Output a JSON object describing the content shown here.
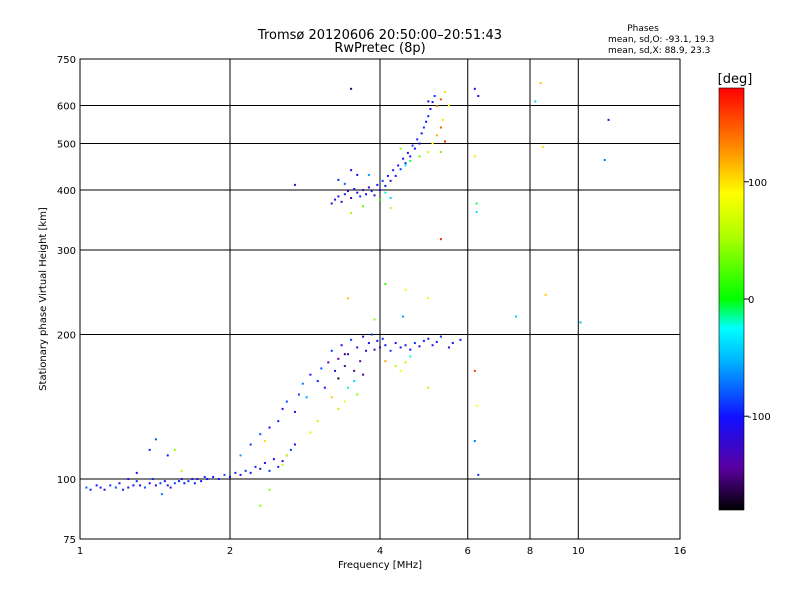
{
  "chart_data": {
    "type": "scatter",
    "title": "Tromsø 20120606 20:50:00–20:51:43",
    "subtitle": "RwPretec (8p)",
    "xlabel": "Frequency [MHz]",
    "ylabel": "Stationary phase Virtual Height [km]",
    "x_scale": "log",
    "y_scale": "log",
    "xlim": [
      1,
      16
    ],
    "ylim": [
      75,
      750
    ],
    "x_ticks": [
      "1",
      "2",
      "4",
      "6",
      "8",
      "10",
      "16"
    ],
    "y_ticks": [
      "75",
      "100",
      "200",
      "300",
      "400",
      "500",
      "600",
      "750"
    ],
    "x_tick_values": [
      1,
      2,
      4,
      6,
      8,
      10,
      16
    ],
    "y_tick_values": [
      75,
      100,
      200,
      300,
      400,
      500,
      600,
      750
    ],
    "x_grid": [
      2,
      4,
      6,
      8,
      10
    ],
    "y_grid": [
      100,
      200,
      300,
      400,
      500,
      600
    ],
    "grid": true,
    "stats": {
      "heading": "Phases",
      "line_o": "mean, sd,O: -93.1, 19.3",
      "line_x": "mean, sd,X:  88.9, 23.3"
    },
    "colorbar": {
      "label": "[deg]",
      "range": [
        -180,
        180
      ],
      "ticks": [
        "100",
        "0",
        "-100"
      ],
      "tick_values": [
        100,
        0,
        -100
      ]
    },
    "series": [
      {
        "points": [
          [
            1.03,
            96,
            -80
          ],
          [
            1.05,
            95,
            -95
          ],
          [
            1.08,
            97,
            -110
          ],
          [
            1.1,
            96,
            -100
          ],
          [
            1.12,
            95,
            -120
          ],
          [
            1.15,
            97,
            -90
          ],
          [
            1.18,
            96,
            -85
          ],
          [
            1.2,
            98,
            -105
          ],
          [
            1.22,
            95,
            -95
          ],
          [
            1.25,
            96,
            -115
          ],
          [
            1.28,
            97,
            -100
          ],
          [
            1.3,
            99,
            -90
          ],
          [
            1.32,
            97,
            -110
          ],
          [
            1.35,
            96,
            -80
          ],
          [
            1.38,
            98,
            -100
          ],
          [
            1.4,
            100,
            -95
          ],
          [
            1.42,
            97,
            -120
          ],
          [
            1.45,
            98,
            -90
          ],
          [
            1.48,
            99,
            -105
          ],
          [
            1.5,
            97,
            -100
          ],
          [
            1.52,
            96,
            -115
          ],
          [
            1.55,
            98,
            -85
          ],
          [
            1.58,
            99,
            -95
          ],
          [
            1.6,
            100,
            -110
          ],
          [
            1.62,
            98,
            -100
          ],
          [
            1.65,
            99,
            -90
          ],
          [
            1.68,
            100,
            -105
          ],
          [
            1.7,
            98,
            -95
          ],
          [
            1.72,
            100,
            -120
          ],
          [
            1.75,
            99,
            -100
          ],
          [
            1.78,
            101,
            -90
          ],
          [
            1.8,
            100,
            -110
          ],
          [
            1.85,
            101,
            -95
          ],
          [
            1.9,
            100,
            -100
          ],
          [
            1.95,
            102,
            -85
          ],
          [
            2.0,
            101,
            -105
          ],
          [
            2.05,
            103,
            -95
          ],
          [
            2.1,
            102,
            -110
          ],
          [
            2.15,
            104,
            -90
          ],
          [
            2.2,
            103,
            -100
          ],
          [
            2.25,
            106,
            -95
          ],
          [
            2.3,
            105,
            -115
          ],
          [
            2.35,
            108,
            -100
          ],
          [
            2.4,
            104,
            -90
          ],
          [
            2.45,
            110,
            -105
          ],
          [
            2.5,
            106,
            -95
          ],
          [
            2.55,
            109,
            -110
          ],
          [
            2.6,
            112,
            -100
          ],
          [
            2.65,
            115,
            -90
          ],
          [
            2.7,
            118,
            -105
          ],
          [
            1.38,
            115,
            -95
          ],
          [
            1.42,
            121,
            -80
          ],
          [
            1.5,
            112,
            -100
          ],
          [
            1.55,
            115,
            45
          ],
          [
            1.3,
            103,
            -110
          ],
          [
            1.46,
            93,
            -70
          ],
          [
            1.25,
            100,
            -100
          ],
          [
            1.6,
            104,
            55
          ],
          [
            2.1,
            112,
            -60
          ],
          [
            2.2,
            118,
            -90
          ],
          [
            2.3,
            124,
            -80
          ],
          [
            2.4,
            128,
            -100
          ],
          [
            2.5,
            132,
            -95
          ],
          [
            2.55,
            140,
            -110
          ],
          [
            2.6,
            145,
            -85
          ],
          [
            2.7,
            138,
            -120
          ],
          [
            2.75,
            150,
            -90
          ],
          [
            2.8,
            158,
            -70
          ],
          [
            2.85,
            148,
            -60
          ],
          [
            2.9,
            165,
            -100
          ],
          [
            3.0,
            160,
            -95
          ],
          [
            3.05,
            170,
            -80
          ],
          [
            3.1,
            155,
            -110
          ],
          [
            3.15,
            175,
            -130
          ],
          [
            3.2,
            185,
            -90
          ],
          [
            3.25,
            168,
            -120
          ],
          [
            3.3,
            178,
            -140
          ],
          [
            3.35,
            190,
            -100
          ],
          [
            3.4,
            172,
            -130
          ],
          [
            3.45,
            182,
            -110
          ],
          [
            3.5,
            195,
            -90
          ],
          [
            3.55,
            168,
            -150
          ],
          [
            3.6,
            188,
            -120
          ],
          [
            3.65,
            176,
            -140
          ],
          [
            3.7,
            198,
            -100
          ],
          [
            3.75,
            185,
            -130
          ],
          [
            3.8,
            192,
            -110
          ],
          [
            3.85,
            200,
            -90
          ],
          [
            3.9,
            186,
            -120
          ],
          [
            3.95,
            194,
            -100
          ],
          [
            4.0,
            188,
            -110
          ],
          [
            4.05,
            196,
            -95
          ],
          [
            4.1,
            190,
            -105
          ],
          [
            4.2,
            185,
            -90
          ],
          [
            4.3,
            192,
            -100
          ],
          [
            4.4,
            188,
            -110
          ],
          [
            4.5,
            190,
            -95
          ],
          [
            4.6,
            186,
            -100
          ],
          [
            4.7,
            192,
            -90
          ],
          [
            4.8,
            189,
            -105
          ],
          [
            4.9,
            194,
            -95
          ],
          [
            5.0,
            196,
            -100
          ],
          [
            5.1,
            190,
            -110
          ],
          [
            5.2,
            193,
            -100
          ],
          [
            5.3,
            198,
            -90
          ],
          [
            5.5,
            188,
            -120
          ],
          [
            5.6,
            192,
            -110
          ],
          [
            5.8,
            195,
            -100
          ],
          [
            3.3,
            140,
            55
          ],
          [
            3.4,
            145,
            80
          ],
          [
            3.6,
            150,
            40
          ],
          [
            4.3,
            172,
            60
          ],
          [
            4.4,
            168,
            85
          ],
          [
            4.5,
            175,
            50
          ],
          [
            3.0,
            132,
            60
          ],
          [
            2.9,
            125,
            70
          ],
          [
            3.45,
            155,
            -20
          ],
          [
            3.55,
            160,
            -40
          ],
          [
            3.2,
            148,
            110
          ],
          [
            3.3,
            162,
            -170
          ],
          [
            3.7,
            165,
            -150
          ],
          [
            3.4,
            182,
            -160
          ],
          [
            4.6,
            180,
            -20
          ],
          [
            4.1,
            176,
            120
          ],
          [
            2.35,
            120,
            100
          ],
          [
            2.6,
            112,
            80
          ],
          [
            2.4,
            95,
            40
          ],
          [
            2.55,
            107,
            65
          ],
          [
            2.3,
            88,
            40
          ],
          [
            3.45,
            238,
            110
          ],
          [
            3.9,
            215,
            40
          ],
          [
            4.1,
            255,
            15
          ],
          [
            4.5,
            248,
            95
          ],
          [
            5.0,
            238,
            80
          ],
          [
            4.45,
            218,
            -60
          ],
          [
            7.5,
            218,
            -40
          ],
          [
            8.6,
            242,
            110
          ],
          [
            10.1,
            212,
            -50
          ],
          [
            6.2,
            168,
            160
          ],
          [
            6.25,
            142,
            90
          ],
          [
            6.2,
            120,
            -70
          ],
          [
            6.3,
            102,
            -90
          ],
          [
            5.0,
            155,
            60
          ],
          [
            3.2,
            375,
            -120
          ],
          [
            3.25,
            382,
            -110
          ],
          [
            3.3,
            388,
            -100
          ],
          [
            3.35,
            378,
            -130
          ],
          [
            3.4,
            392,
            -95
          ],
          [
            3.45,
            398,
            -120
          ],
          [
            3.5,
            385,
            -140
          ],
          [
            3.55,
            402,
            -100
          ],
          [
            3.6,
            395,
            -110
          ],
          [
            3.65,
            388,
            -90
          ],
          [
            3.7,
            400,
            -130
          ],
          [
            3.75,
            392,
            -100
          ],
          [
            3.8,
            405,
            -115
          ],
          [
            3.85,
            398,
            -95
          ],
          [
            3.9,
            390,
            -120
          ],
          [
            3.95,
            410,
            -100
          ],
          [
            4.0,
            400,
            -110
          ],
          [
            4.05,
            418,
            -90
          ],
          [
            4.1,
            408,
            -105
          ],
          [
            4.15,
            428,
            -100
          ],
          [
            4.2,
            418,
            -120
          ],
          [
            4.25,
            440,
            -95
          ],
          [
            4.3,
            428,
            -110
          ],
          [
            4.35,
            450,
            -100
          ],
          [
            4.4,
            442,
            -90
          ],
          [
            4.45,
            465,
            -105
          ],
          [
            4.5,
            455,
            -95
          ],
          [
            4.55,
            478,
            -110
          ],
          [
            4.6,
            470,
            -100
          ],
          [
            4.65,
            495,
            -90
          ],
          [
            4.7,
            488,
            -100
          ],
          [
            4.75,
            510,
            -95
          ],
          [
            4.8,
            500,
            -110
          ],
          [
            4.85,
            525,
            -100
          ],
          [
            4.9,
            540,
            -90
          ],
          [
            4.95,
            555,
            -105
          ],
          [
            5.0,
            570,
            -95
          ],
          [
            5.05,
            590,
            -100
          ],
          [
            5.1,
            610,
            -110
          ],
          [
            5.15,
            628,
            -90
          ],
          [
            3.5,
            440,
            -110
          ],
          [
            3.6,
            430,
            -100
          ],
          [
            3.4,
            412,
            -80
          ],
          [
            3.3,
            420,
            -95
          ],
          [
            3.8,
            430,
            -60
          ],
          [
            4.1,
            395,
            -20
          ],
          [
            4.2,
            385,
            -40
          ],
          [
            4.0,
            382,
            10
          ],
          [
            3.7,
            370,
            30
          ],
          [
            3.5,
            358,
            50
          ],
          [
            4.5,
            450,
            -30
          ],
          [
            4.6,
            460,
            -10
          ],
          [
            4.8,
            470,
            30
          ],
          [
            5.0,
            480,
            60
          ],
          [
            5.1,
            500,
            90
          ],
          [
            5.2,
            520,
            120
          ],
          [
            5.3,
            540,
            150
          ],
          [
            5.35,
            560,
            100
          ],
          [
            5.4,
            505,
            170
          ],
          [
            5.5,
            600,
            80
          ],
          [
            5.2,
            598,
            130
          ],
          [
            5.3,
            618,
            150
          ],
          [
            5.4,
            640,
            100
          ],
          [
            5.0,
            612,
            -120
          ],
          [
            5.3,
            480,
            40
          ],
          [
            2.7,
            410,
            -120
          ],
          [
            3.5,
            650,
            -160
          ],
          [
            6.2,
            650,
            -100
          ],
          [
            6.3,
            628,
            -120
          ],
          [
            8.2,
            612,
            -40
          ],
          [
            8.4,
            668,
            110
          ],
          [
            8.5,
            492,
            100
          ],
          [
            6.2,
            470,
            100
          ],
          [
            6.25,
            375,
            -10
          ],
          [
            6.25,
            360,
            -30
          ],
          [
            11.5,
            560,
            -120
          ],
          [
            11.3,
            462,
            -70
          ],
          [
            5.3,
            316,
            170
          ],
          [
            4.2,
            367,
            60
          ],
          [
            4.4,
            488,
            40
          ]
        ]
      }
    ]
  }
}
